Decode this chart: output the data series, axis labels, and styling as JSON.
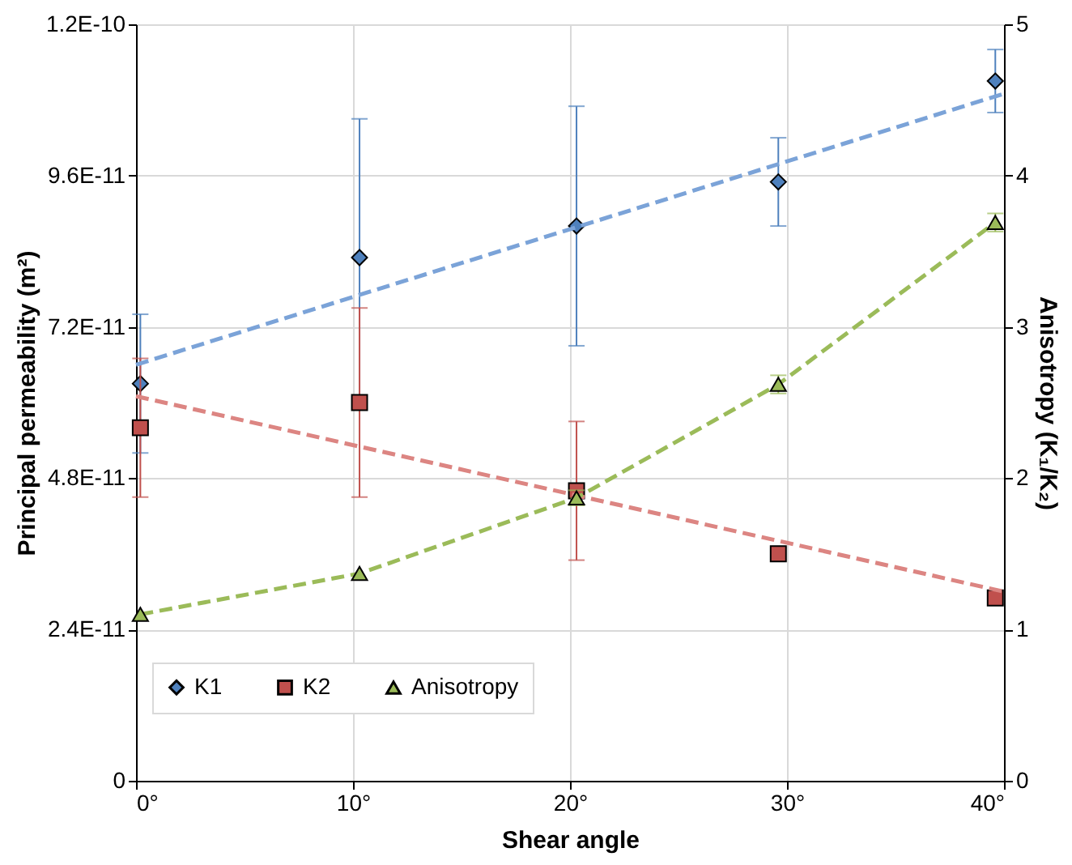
{
  "chart_data": {
    "type": "scatter",
    "xlabel": "Shear angle",
    "ylabel": "Principal permeability (m²)",
    "y2label": "Anisotropy (K₁/K₂)",
    "xlim": [
      0,
      40
    ],
    "xticks": [
      {
        "value": 0,
        "label": "0°"
      },
      {
        "value": 10,
        "label": "10°"
      },
      {
        "value": 20,
        "label": "20°"
      },
      {
        "value": 30,
        "label": "30°"
      },
      {
        "value": 40,
        "label": "40°"
      }
    ],
    "ylim": [
      0,
      1.2e-10
    ],
    "yticks": [
      0,
      {
        "value": 2.4e-11,
        "label": "2.4E-11"
      },
      {
        "value": 4.8e-11,
        "label": "4.8E-11"
      },
      {
        "value": 7.2e-11,
        "label": "7.2E-11"
      },
      {
        "value": 9.6e-11,
        "label": "9.6E-11"
      },
      {
        "value": 1.2e-10,
        "label": "1.2E-10"
      }
    ],
    "y2lim": [
      0,
      5
    ],
    "y2ticks": [
      0,
      1,
      2,
      3,
      4,
      5
    ],
    "grid": true,
    "legend": "bottom",
    "series": [
      {
        "name": "K1",
        "marker": "diamond",
        "color": "#4f81bd",
        "x": [
          0.2,
          10.3,
          20.3,
          29.6,
          39.6
        ],
        "values": [
          6.3e-11,
          8.3e-11,
          8.8e-11,
          9.5e-11,
          1.11e-10
        ],
        "errors": [
          1.1e-11,
          2.2e-11,
          1.9e-11,
          7e-12,
          5e-12
        ]
      },
      {
        "name": "K2",
        "marker": "square",
        "color": "#c0504d",
        "x": [
          0.2,
          10.3,
          20.3,
          29.6,
          39.6
        ],
        "values": [
          5.6e-11,
          6e-11,
          4.6e-11,
          3.6e-11,
          2.9e-11
        ],
        "errors": [
          1.1e-11,
          1.5e-11,
          1.1e-11,
          1e-12,
          1e-12
        ]
      },
      {
        "name": "Anisotropy",
        "type": "line",
        "axis": "y2",
        "marker": "triangle",
        "line_style": "dashed",
        "color": "#9bbb59",
        "x": [
          0.2,
          10.3,
          20.3,
          29.6,
          39.6
        ],
        "values": [
          1.1,
          1.37,
          1.87,
          2.62,
          3.69
        ],
        "errors": [
          null,
          null,
          0.05,
          0.06,
          0.06
        ]
      },
      {
        "type": "line",
        "marker": "none",
        "line_style": "dashed",
        "color": "#7ba3d8",
        "x": [
          0,
          40
        ],
        "values": [
          6.6e-11,
          1.09e-10
        ]
      },
      {
        "type": "line",
        "marker": "none",
        "line_style": "dashed",
        "color": "#dc8582",
        "x": [
          0,
          40
        ],
        "values": [
          6.1e-11,
          3e-11
        ]
      }
    ]
  }
}
